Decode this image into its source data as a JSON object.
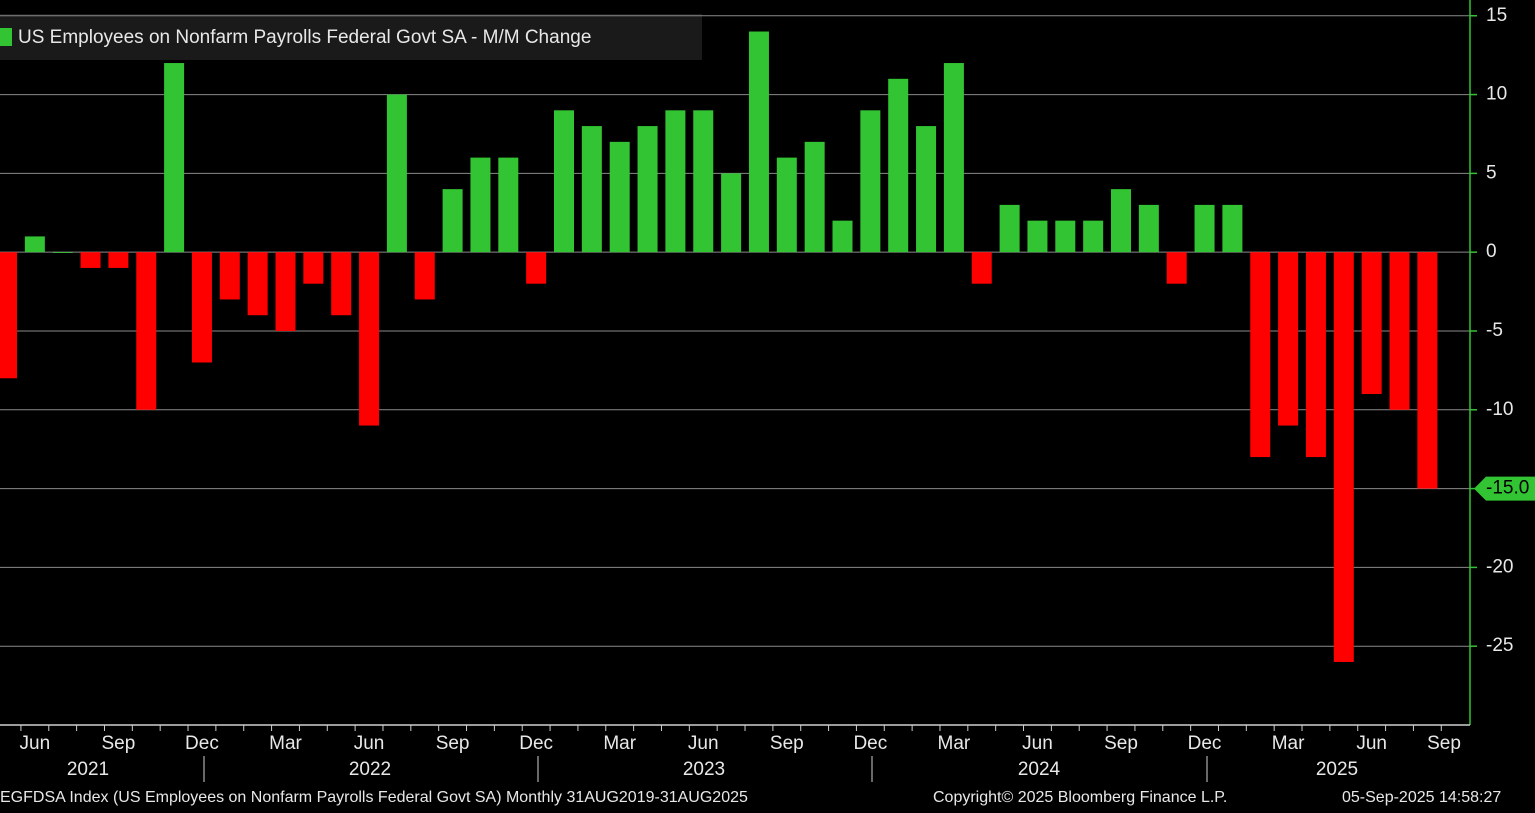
{
  "chart_data": {
    "type": "bar",
    "legend": "US Employees on Nonfarm Payrolls Federal Govt SA - M/M Change",
    "categories": [
      null,
      "Jun",
      null,
      null,
      "Sep",
      null,
      null,
      "Dec",
      null,
      null,
      "Mar",
      null,
      null,
      "Jun",
      null,
      null,
      "Sep",
      null,
      null,
      "Dec",
      null,
      null,
      "Mar",
      null,
      null,
      "Jun",
      null,
      null,
      "Sep",
      null,
      null,
      "Dec",
      null,
      null,
      "Mar",
      null,
      null,
      "Jun",
      null,
      null,
      "Sep",
      null,
      null,
      "Dec",
      null,
      null,
      "Mar",
      null,
      null,
      "Jun",
      null,
      null
    ],
    "values": [
      -8,
      1,
      0,
      -1,
      -1,
      -10,
      12,
      -7,
      -3,
      -4,
      -5,
      -2,
      -4,
      -11,
      10,
      -3,
      4,
      6,
      6,
      -2,
      9,
      8,
      7,
      8,
      9,
      9,
      5,
      14,
      6,
      7,
      2,
      9,
      11,
      8,
      12,
      -2,
      3,
      2,
      2,
      2,
      4,
      3,
      -2,
      3,
      3,
      -13,
      -11,
      -13,
      -26,
      -9,
      -10,
      -15
    ],
    "x_end_label": "Sep",
    "year_labels": [
      "2021",
      "2022",
      "2023",
      "2024",
      "2025"
    ],
    "colors": {
      "positive": "#33c433",
      "negative": "#ff0000"
    },
    "ylim": [
      -30,
      16
    ],
    "yticks": [
      15,
      10,
      5,
      0,
      -5,
      -10,
      -15,
      -20,
      -25
    ],
    "grid": true,
    "last_value_tag": "-15.0",
    "footer": {
      "source": "EGFDSA Index (US Employees on Nonfarm Payrolls Federal Govt SA)  Monthly 31AUG2019-31AUG2025",
      "copyright": "Copyright© 2025 Bloomberg Finance L.P.",
      "timestamp": "05-Sep-2025 14:58:27"
    }
  }
}
